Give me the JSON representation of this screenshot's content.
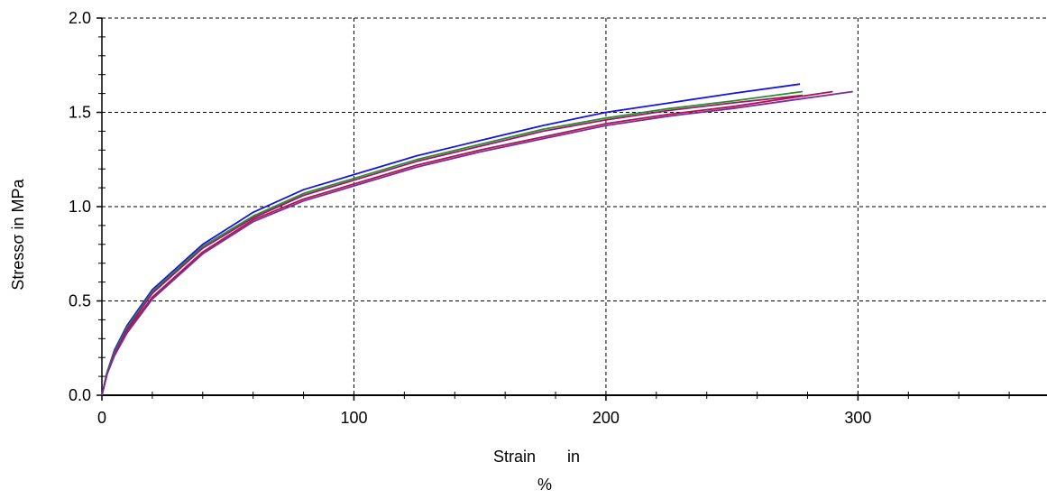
{
  "chart_data": {
    "type": "line",
    "xlabel": "Strain       in",
    "xlabel_unit": "%",
    "ylabel": "Stressσ in MPa",
    "xlim": [
      0,
      375
    ],
    "ylim": [
      0,
      2.0
    ],
    "x_ticks": [
      "0",
      "100",
      "200",
      "300"
    ],
    "y_ticks": [
      "0.0",
      "0.5",
      "1.0",
      "1.5",
      "2.0"
    ],
    "grid": true,
    "colors": [
      "#1414e6",
      "#2e8b2e",
      "#a0146e",
      "#b01450",
      "#7030a0"
    ],
    "series": [
      {
        "color": "#1414e6",
        "x": [
          0,
          2,
          5,
          10,
          20,
          40,
          60,
          80,
          100,
          125,
          150,
          175,
          200,
          225,
          250,
          277
        ],
        "y": [
          0,
          0.12,
          0.24,
          0.37,
          0.56,
          0.8,
          0.97,
          1.09,
          1.17,
          1.27,
          1.35,
          1.43,
          1.5,
          1.55,
          1.6,
          1.65
        ]
      },
      {
        "color": "#2e8b2e",
        "x": [
          0,
          2,
          5,
          10,
          20,
          40,
          60,
          80,
          100,
          125,
          150,
          175,
          200,
          225,
          250,
          278
        ],
        "y": [
          0,
          0.12,
          0.23,
          0.36,
          0.55,
          0.79,
          0.95,
          1.07,
          1.15,
          1.25,
          1.33,
          1.41,
          1.47,
          1.52,
          1.56,
          1.61
        ]
      },
      {
        "color": "#a0146e",
        "x": [
          0,
          2,
          5,
          10,
          20,
          40,
          60,
          80,
          100,
          125,
          150,
          175,
          200,
          225,
          250,
          278
        ],
        "y": [
          0,
          0.11,
          0.22,
          0.35,
          0.54,
          0.78,
          0.94,
          1.06,
          1.14,
          1.24,
          1.32,
          1.4,
          1.46,
          1.51,
          1.55,
          1.59
        ]
      },
      {
        "color": "#b01450",
        "x": [
          0,
          2,
          5,
          10,
          20,
          40,
          60,
          80,
          100,
          125,
          150,
          175,
          200,
          225,
          250,
          290
        ],
        "y": [
          0,
          0.11,
          0.22,
          0.34,
          0.52,
          0.76,
          0.93,
          1.04,
          1.12,
          1.22,
          1.3,
          1.37,
          1.44,
          1.49,
          1.53,
          1.61
        ]
      },
      {
        "color": "#7030a0",
        "x": [
          0,
          2,
          5,
          10,
          20,
          40,
          60,
          80,
          100,
          125,
          150,
          175,
          200,
          225,
          250,
          298
        ],
        "y": [
          0,
          0.11,
          0.21,
          0.33,
          0.51,
          0.75,
          0.92,
          1.03,
          1.11,
          1.21,
          1.29,
          1.36,
          1.43,
          1.48,
          1.52,
          1.61
        ]
      }
    ]
  }
}
